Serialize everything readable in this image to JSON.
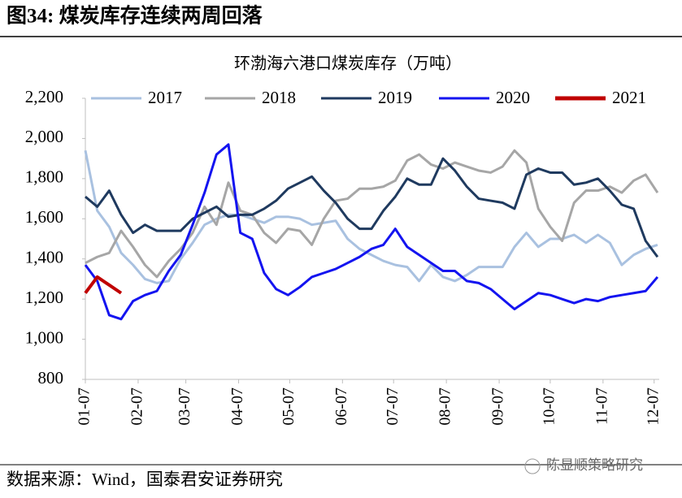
{
  "title": "图34: 煤炭库存连续两周回落",
  "source": "数据来源：Wind，国泰君安证券研究",
  "watermark": "陈显顺策略研究",
  "chart_data": {
    "type": "line",
    "title": "环渤海六港口煤炭库存（万吨）",
    "x": [
      7,
      14,
      21,
      28,
      35,
      42,
      49,
      56,
      63,
      70,
      77,
      84,
      91,
      98,
      105,
      112,
      119,
      126,
      133,
      140,
      147,
      154,
      161,
      168,
      175,
      182,
      189,
      196,
      203,
      210,
      217,
      224,
      231,
      238,
      245,
      252,
      259,
      266,
      273,
      280,
      287,
      294,
      301,
      308,
      315,
      322,
      329,
      336,
      343
    ],
    "xlim": [
      7,
      344
    ],
    "xticks": [
      {
        "value": 7,
        "label": "01-07"
      },
      {
        "value": 38,
        "label": "02-07"
      },
      {
        "value": 66,
        "label": "03-07"
      },
      {
        "value": 97,
        "label": "04-07"
      },
      {
        "value": 127,
        "label": "05-07"
      },
      {
        "value": 158,
        "label": "06-07"
      },
      {
        "value": 188,
        "label": "07-07"
      },
      {
        "value": 219,
        "label": "08-07"
      },
      {
        "value": 250,
        "label": "09-07"
      },
      {
        "value": 280,
        "label": "10-07"
      },
      {
        "value": 311,
        "label": "11-07"
      },
      {
        "value": 341,
        "label": "12-07"
      }
    ],
    "ylim": [
      800,
      2200
    ],
    "yticks": [
      800,
      {
        "value": 1000,
        "label": "1,000"
      },
      {
        "value": 1200,
        "label": "1,200"
      },
      {
        "value": 1400,
        "label": "1,400"
      },
      {
        "value": 1600,
        "label": "1,600"
      },
      {
        "value": 1800,
        "label": "1,800"
      },
      {
        "value": 2000,
        "label": "2,000"
      },
      {
        "value": 2200,
        "label": "2,200"
      }
    ],
    "legend": "top",
    "series": [
      {
        "name": "2017",
        "color": "#a9c1e0",
        "values": [
          1940,
          1640,
          1560,
          1430,
          1370,
          1300,
          1280,
          1290,
          1400,
          1480,
          1570,
          1600,
          1620,
          1620,
          1600,
          1580,
          1610,
          1610,
          1600,
          1570,
          1580,
          1590,
          1500,
          1450,
          1420,
          1390,
          1370,
          1360,
          1290,
          1370,
          1310,
          1290,
          1320,
          1360,
          1360,
          1360,
          1460,
          1530,
          1460,
          1500,
          1500,
          1520,
          1480,
          1520,
          1480,
          1370,
          1420,
          1450,
          1470
        ]
      },
      {
        "name": "2018",
        "color": "#a6a6a6",
        "values": [
          1380,
          1410,
          1430,
          1540,
          1460,
          1370,
          1310,
          1390,
          1450,
          1530,
          1660,
          1570,
          1780,
          1640,
          1620,
          1530,
          1480,
          1550,
          1540,
          1470,
          1600,
          1690,
          1700,
          1750,
          1750,
          1760,
          1790,
          1890,
          1920,
          1870,
          1850,
          1880,
          1860,
          1840,
          1830,
          1860,
          1940,
          1880,
          1650,
          1560,
          1490,
          1680,
          1740,
          1740,
          1760,
          1730,
          1790,
          1820,
          1730
        ]
      },
      {
        "name": "2019",
        "color": "#1f3a5f",
        "values": [
          1710,
          1660,
          1740,
          1620,
          1530,
          1570,
          1540,
          1540,
          1540,
          1600,
          1630,
          1660,
          1610,
          1620,
          1620,
          1650,
          1690,
          1750,
          1780,
          1810,
          1740,
          1680,
          1600,
          1550,
          1550,
          1640,
          1710,
          1800,
          1770,
          1770,
          1900,
          1840,
          1760,
          1700,
          1690,
          1680,
          1650,
          1820,
          1850,
          1830,
          1830,
          1770,
          1780,
          1800,
          1740,
          1670,
          1650,
          1490,
          1410
        ]
      },
      {
        "name": "2020",
        "color": "#1414f0",
        "values": [
          1370,
          1290,
          1120,
          1100,
          1190,
          1220,
          1240,
          1340,
          1420,
          1570,
          1730,
          1920,
          1970,
          1530,
          1500,
          1330,
          1250,
          1220,
          1260,
          1310,
          1330,
          1350,
          1380,
          1410,
          1450,
          1470,
          1550,
          1460,
          1420,
          1380,
          1340,
          1340,
          1290,
          1280,
          1250,
          1200,
          1150,
          1190,
          1230,
          1220,
          1200,
          1180,
          1200,
          1190,
          1210,
          1220,
          1230,
          1240,
          1310
        ]
      },
      {
        "name": "2021",
        "color": "#c00000",
        "values": [
          1230,
          1310,
          1270,
          1230,
          null,
          null,
          null,
          null,
          null,
          null,
          null,
          null,
          null,
          null,
          null,
          null,
          null,
          null,
          null,
          null,
          null,
          null,
          null,
          null,
          null,
          null,
          null,
          null,
          null,
          null,
          null,
          null,
          null,
          null,
          null,
          null,
          null,
          null,
          null,
          null,
          null,
          null,
          null,
          null,
          null,
          null,
          null,
          null,
          null
        ]
      }
    ]
  }
}
